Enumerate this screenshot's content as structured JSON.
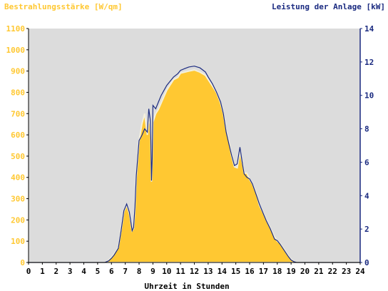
{
  "chart_data": {
    "type": "area",
    "left_axis": {
      "title": "Bestrahlungsstärke [W/qm]",
      "ylim": [
        0,
        1100
      ],
      "ticks": [
        0,
        100,
        200,
        300,
        400,
        500,
        600,
        700,
        800,
        900,
        1000,
        1100
      ],
      "color": "#ffc832"
    },
    "right_axis": {
      "title": "Leistung der Anlage [kW]",
      "ylim": [
        0,
        14
      ],
      "ticks": [
        0,
        2,
        4,
        6,
        8,
        10,
        12,
        14
      ],
      "color": "#1a2a80"
    },
    "x_axis": {
      "title": "Uhrzeit in Stunden",
      "xlim": [
        0,
        24
      ],
      "ticks": [
        0,
        1,
        2,
        3,
        4,
        5,
        6,
        7,
        8,
        9,
        10,
        11,
        12,
        13,
        14,
        15,
        16,
        17,
        18,
        19,
        20,
        21,
        22,
        23,
        24
      ]
    },
    "grid": false,
    "plot_background": "#dcdcdc",
    "series": [
      {
        "axis": "left",
        "style": "area",
        "color": "#ffc832",
        "x": [
          0,
          5.5,
          5.8,
          6.0,
          6.2,
          6.5,
          6.7,
          6.9,
          7.1,
          7.3,
          7.5,
          7.6,
          7.7,
          7.8,
          8.0,
          8.2,
          8.4,
          8.6,
          8.7,
          8.8,
          8.85,
          8.9,
          8.95,
          9.0,
          9.2,
          9.4,
          9.6,
          9.8,
          10.0,
          10.2,
          10.5,
          10.8,
          11.0,
          11.3,
          11.6,
          12.0,
          12.4,
          12.8,
          13.0,
          13.3,
          13.6,
          13.9,
          14.1,
          14.3,
          14.5,
          14.7,
          14.9,
          15.1,
          15.3,
          15.5,
          15.6,
          15.8,
          16.0,
          16.2,
          16.5,
          16.7,
          17.0,
          17.2,
          17.5,
          17.8,
          18.0,
          18.2,
          18.4,
          18.6,
          18.8,
          19.0,
          19.2,
          19.4,
          24
        ],
        "y": [
          0,
          0,
          10,
          25,
          40,
          70,
          150,
          240,
          270,
          230,
          150,
          160,
          250,
          400,
          570,
          650,
          700,
          600,
          680,
          650,
          580,
          380,
          480,
          660,
          700,
          720,
          750,
          780,
          810,
          830,
          860,
          870,
          890,
          895,
          900,
          905,
          895,
          880,
          860,
          830,
          800,
          750,
          700,
          620,
          570,
          500,
          450,
          445,
          520,
          460,
          420,
          420,
          390,
          370,
          320,
          270,
          230,
          200,
          160,
          120,
          100,
          90,
          70,
          50,
          30,
          15,
          5,
          0,
          0
        ]
      },
      {
        "axis": "right",
        "style": "line",
        "color": "#1a2a80",
        "x": [
          0,
          5.5,
          5.8,
          6.0,
          6.2,
          6.5,
          6.7,
          6.9,
          7.1,
          7.3,
          7.5,
          7.6,
          7.7,
          7.8,
          8.0,
          8.2,
          8.4,
          8.6,
          8.7,
          8.8,
          8.85,
          8.9,
          8.95,
          9.0,
          9.2,
          9.4,
          9.6,
          9.8,
          10.0,
          10.2,
          10.5,
          10.8,
          11.0,
          11.3,
          11.6,
          12.0,
          12.4,
          12.8,
          13.0,
          13.3,
          13.6,
          13.9,
          14.1,
          14.3,
          14.5,
          14.7,
          14.9,
          15.1,
          15.3,
          15.5,
          15.6,
          15.8,
          16.0,
          16.2,
          16.5,
          16.7,
          17.0,
          17.2,
          17.5,
          17.8,
          18.0,
          18.2,
          18.4,
          18.6,
          18.8,
          19.0,
          19.2,
          19.4,
          24
        ],
        "y": [
          0,
          0,
          0.1,
          0.25,
          0.45,
          0.85,
          1.9,
          3.1,
          3.5,
          3.0,
          1.9,
          2.1,
          3.3,
          5.2,
          7.3,
          7.6,
          8.0,
          7.8,
          9.2,
          8.6,
          7.3,
          4.9,
          6.2,
          9.4,
          9.2,
          9.6,
          10.0,
          10.3,
          10.6,
          10.8,
          11.1,
          11.3,
          11.5,
          11.6,
          11.7,
          11.75,
          11.65,
          11.4,
          11.1,
          10.7,
          10.2,
          9.6,
          8.9,
          7.8,
          7.1,
          6.4,
          5.8,
          5.9,
          6.9,
          5.8,
          5.3,
          5.1,
          5.0,
          4.7,
          4.0,
          3.5,
          2.9,
          2.5,
          2.0,
          1.4,
          1.3,
          1.1,
          0.85,
          0.6,
          0.35,
          0.15,
          0.05,
          0,
          0
        ]
      }
    ]
  }
}
